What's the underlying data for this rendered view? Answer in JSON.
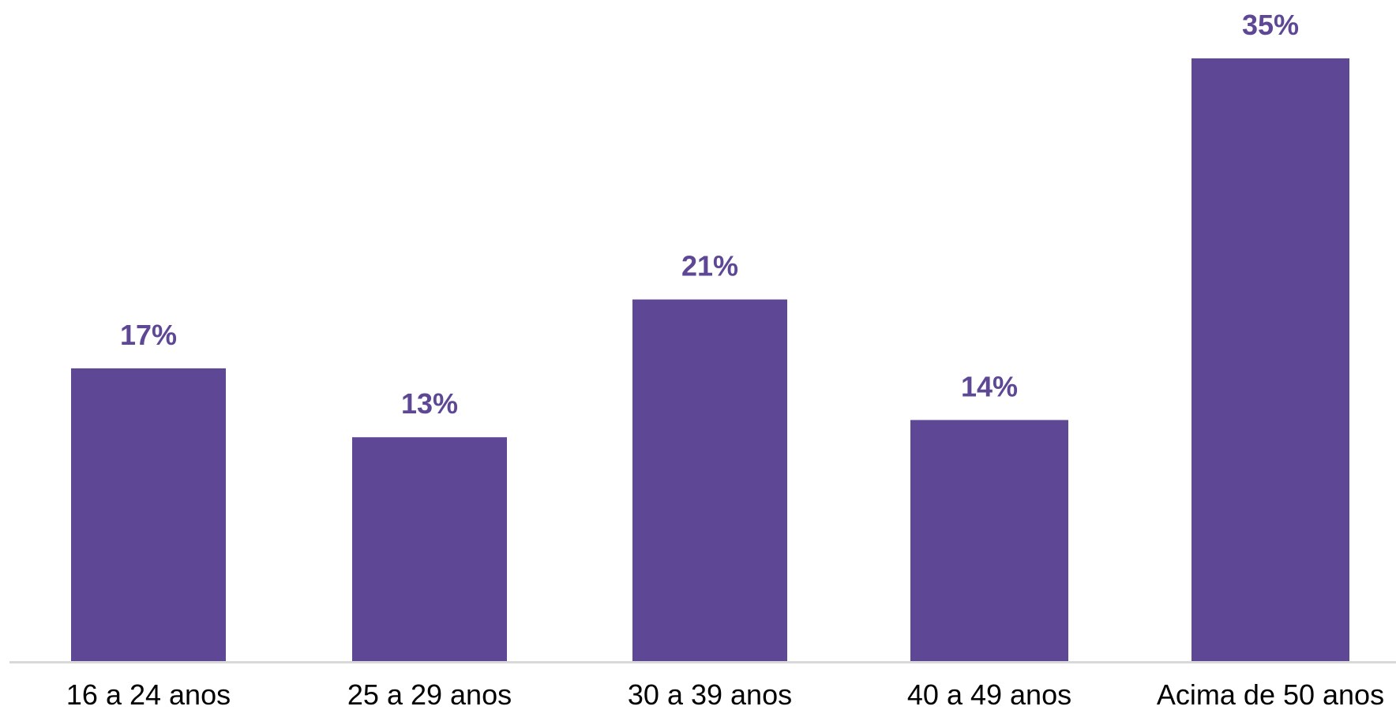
{
  "chart_data": {
    "type": "bar",
    "title": "",
    "xlabel": "",
    "ylabel": "",
    "categories": [
      "16 a 24 anos",
      "25 a 29 anos",
      "30 a 39 anos",
      "40 a 49 anos",
      "Acima de 50 anos"
    ],
    "values": [
      17,
      13,
      21,
      14,
      35
    ],
    "value_labels": [
      "17%",
      "13%",
      "21%",
      "14%",
      "35%"
    ],
    "unit": "%",
    "ylim": [
      0,
      35
    ],
    "grid": false,
    "legend": "none",
    "colors": {
      "bar": "#5E4896",
      "value_label": "#5E4896",
      "axis": "#D9D9D9",
      "category_label": "#000000"
    }
  }
}
